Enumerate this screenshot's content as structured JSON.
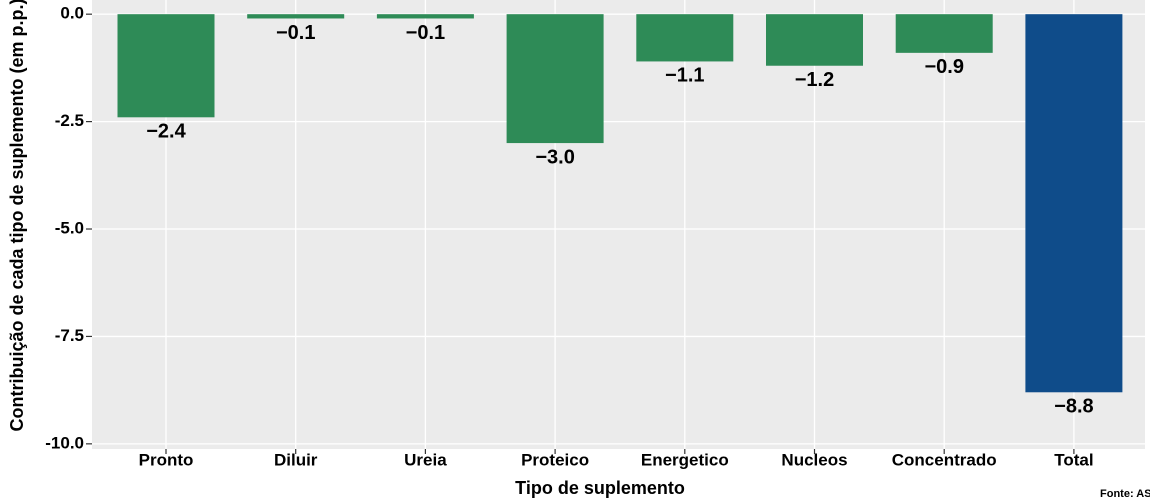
{
  "chart_data": {
    "type": "bar",
    "x_label": "Tipo de suplemento",
    "y_label": "Contribuição de cada tipo de suplemento (em p.p.)",
    "source": "Fonte: ASBRAM",
    "categories": [
      "Pronto",
      "Diluir",
      "Ureia",
      "Proteico",
      "Energetico",
      "Nucleos",
      "Concentrado",
      "Total"
    ],
    "values": [
      -2.4,
      -0.1,
      -0.1,
      -3.0,
      -1.1,
      -1.2,
      -0.9,
      -8.8
    ],
    "value_labels": [
      "−2.4",
      "−0.1",
      "−0.1",
      "−3.0",
      "−1.1",
      "−1.2",
      "−0.9",
      "−8.8"
    ],
    "colors": [
      "#2e8b57",
      "#2e8b57",
      "#2e8b57",
      "#2e8b57",
      "#2e8b57",
      "#2e8b57",
      "#2e8b57",
      "#0f4c8a"
    ],
    "ylim": [
      -10.12,
      0.33
    ],
    "yticks": [
      {
        "value": 0,
        "label": "0.0"
      },
      {
        "value": -2.5,
        "label": "-2.5"
      },
      {
        "value": -5,
        "label": "-5.0"
      },
      {
        "value": -7.5,
        "label": "-7.5"
      },
      {
        "value": -10,
        "label": "-10.0"
      }
    ],
    "grid": true
  }
}
